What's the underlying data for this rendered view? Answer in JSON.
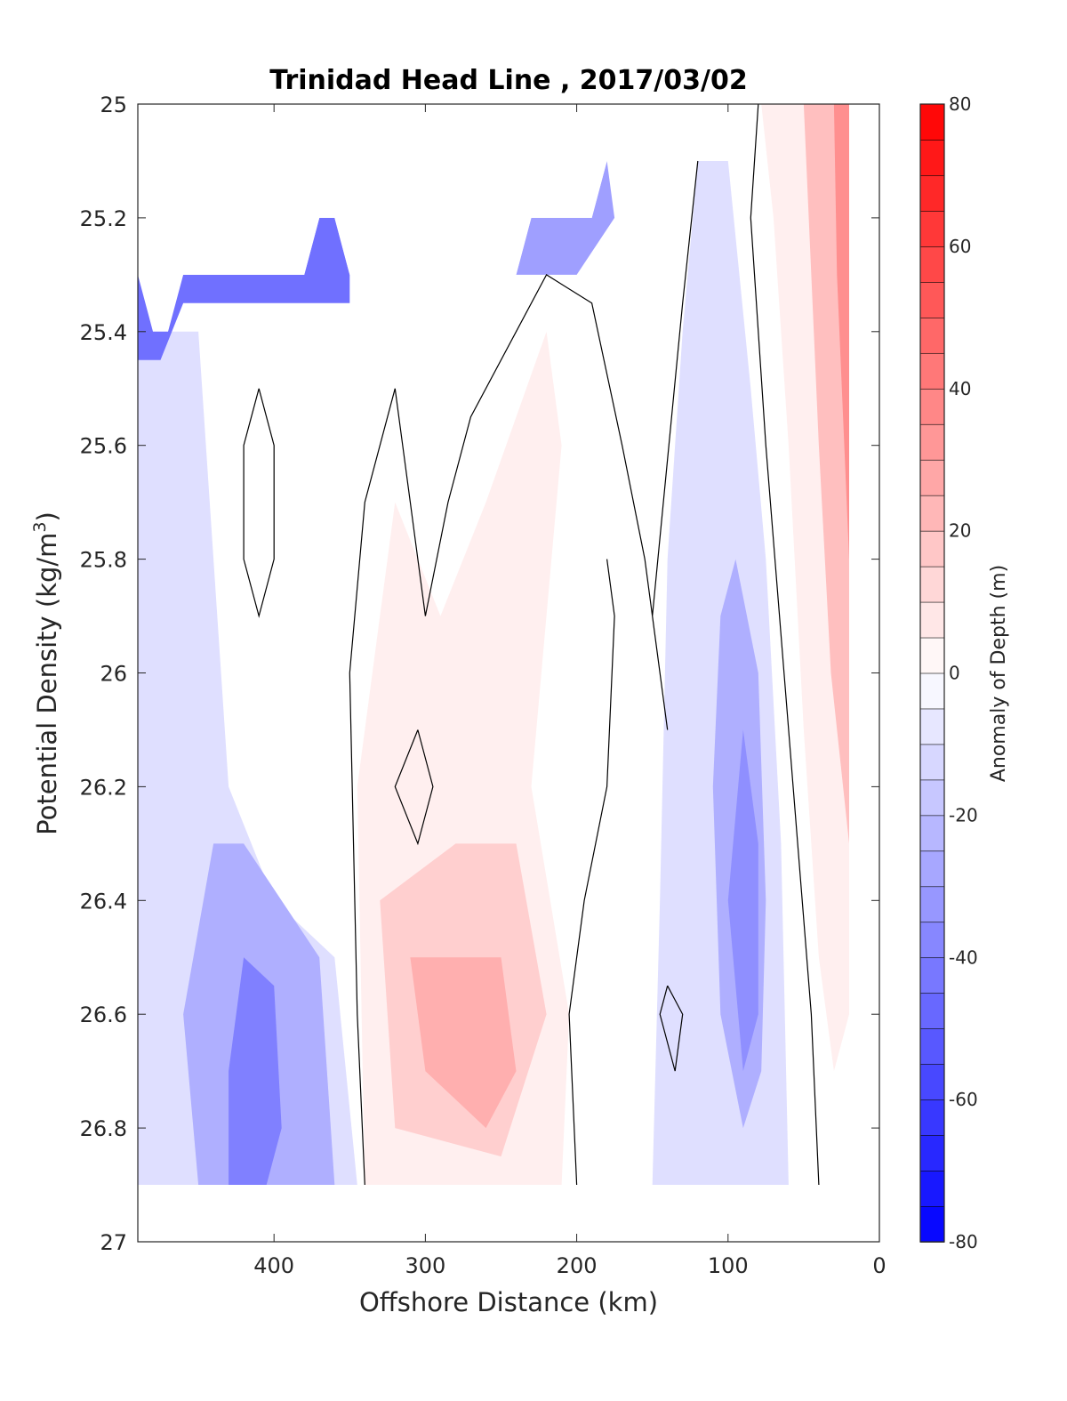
{
  "chart_data": {
    "type": "contourf",
    "title": "Trinidad Head Line , 2017/03/02",
    "xlabel": "Offshore Distance (km)",
    "ylabel_main": "Potential Density (kg/m",
    "ylabel_sup": "3",
    "ylabel_tail": ")",
    "x_reversed": true,
    "xlim": [
      490,
      0
    ],
    "y_reversed": true,
    "ylim": [
      25,
      27
    ],
    "x_ticks": [
      400,
      300,
      200,
      100,
      0
    ],
    "x_tick_labels": [
      "400",
      "300",
      "200",
      "100",
      "0"
    ],
    "y_ticks": [
      25,
      25.2,
      25.4,
      25.6,
      25.8,
      26,
      26.2,
      26.4,
      26.6,
      26.8,
      27
    ],
    "y_tick_labels": [
      "25",
      "25.2",
      "25.4",
      "25.6",
      "25.8",
      "26",
      "26.2",
      "26.4",
      "26.6",
      "26.8",
      "27"
    ],
    "colorbar": {
      "label": "Anomaly of Depth (m)",
      "range": [
        -80,
        80
      ],
      "step": 5,
      "ticks": [
        80,
        60,
        40,
        20,
        0,
        -20,
        -40,
        -60,
        -80
      ],
      "tick_labels": [
        "80",
        "60",
        "40",
        "20",
        "0",
        "-20",
        "-40",
        "-60",
        "-80"
      ],
      "colormap": "blue-white-red",
      "neg_color": "#0000ff",
      "pos_color": "#ff0000"
    },
    "contour_levels_drawn": [
      0
    ],
    "data_top_boundary": [
      [
        490,
        25.3
      ],
      [
        480,
        25.4
      ],
      [
        470,
        25.4
      ],
      [
        460,
        25.3
      ],
      [
        380,
        25.3
      ],
      [
        370,
        25.2
      ],
      [
        360,
        25.2
      ],
      [
        350,
        25.3
      ],
      [
        240,
        25.3
      ],
      [
        230,
        25.2
      ],
      [
        190,
        25.2
      ],
      [
        180,
        25.1
      ],
      [
        120,
        25.1
      ],
      [
        110,
        25.0
      ],
      [
        20,
        25.0
      ]
    ],
    "data_bottom_density": 26.9,
    "data_x_extent": [
      490,
      20
    ],
    "anomaly_regions": [
      {
        "name": "nearshore-positive",
        "anomaly": 5,
        "polygon": [
          [
            78,
            25.0
          ],
          [
            20,
            25.0
          ],
          [
            20,
            26.6
          ],
          [
            30,
            26.7
          ],
          [
            40,
            26.5
          ],
          [
            50,
            26.1
          ],
          [
            60,
            25.6
          ],
          [
            70,
            25.2
          ]
        ]
      },
      {
        "name": "nearshore-positive-mid",
        "anomaly": 20,
        "polygon": [
          [
            50,
            25.0
          ],
          [
            20,
            25.0
          ],
          [
            20,
            26.3
          ],
          [
            32,
            26.0
          ],
          [
            40,
            25.6
          ]
        ]
      },
      {
        "name": "nearshore-positive-core",
        "anomaly": 35,
        "polygon": [
          [
            30,
            25.0
          ],
          [
            20,
            25.0
          ],
          [
            20,
            25.8
          ],
          [
            28,
            25.3
          ]
        ]
      },
      {
        "name": "coastal-negative-band",
        "anomaly": -10,
        "polygon": [
          [
            120,
            25.1
          ],
          [
            100,
            25.1
          ],
          [
            85,
            25.5
          ],
          [
            75,
            25.8
          ],
          [
            65,
            26.3
          ],
          [
            60,
            26.9
          ],
          [
            150,
            26.9
          ],
          [
            145,
            26.4
          ],
          [
            140,
            25.8
          ],
          [
            130,
            25.4
          ]
        ]
      },
      {
        "name": "coastal-negative-core",
        "anomaly": -25,
        "polygon": [
          [
            95,
            25.8
          ],
          [
            80,
            26.0
          ],
          [
            75,
            26.4
          ],
          [
            78,
            26.7
          ],
          [
            90,
            26.8
          ],
          [
            105,
            26.6
          ],
          [
            110,
            26.2
          ],
          [
            105,
            25.9
          ]
        ]
      },
      {
        "name": "coastal-negative-inner",
        "anomaly": -35,
        "polygon": [
          [
            90,
            26.1
          ],
          [
            80,
            26.3
          ],
          [
            80,
            26.6
          ],
          [
            90,
            26.7
          ],
          [
            100,
            26.4
          ]
        ]
      },
      {
        "name": "central-positive",
        "anomaly": 5,
        "polygon": [
          [
            320,
            25.7
          ],
          [
            345,
            26.2
          ],
          [
            340,
            26.9
          ],
          [
            210,
            26.9
          ],
          [
            205,
            26.6
          ],
          [
            230,
            26.2
          ],
          [
            210,
            25.6
          ],
          [
            220,
            25.4
          ],
          [
            260,
            25.7
          ],
          [
            290,
            25.9
          ]
        ]
      },
      {
        "name": "central-positive-mid",
        "anomaly": 15,
        "polygon": [
          [
            330,
            26.4
          ],
          [
            320,
            26.8
          ],
          [
            250,
            26.85
          ],
          [
            220,
            26.6
          ],
          [
            240,
            26.3
          ],
          [
            280,
            26.3
          ]
        ]
      },
      {
        "name": "central-positive-core",
        "anomaly": 25,
        "polygon": [
          [
            310,
            26.5
          ],
          [
            300,
            26.7
          ],
          [
            260,
            26.8
          ],
          [
            240,
            26.7
          ],
          [
            250,
            26.5
          ],
          [
            280,
            26.5
          ]
        ]
      },
      {
        "name": "offshore-negative-band",
        "anomaly": -10,
        "polygon": [
          [
            490,
            25.4
          ],
          [
            450,
            25.4
          ],
          [
            440,
            25.8
          ],
          [
            430,
            26.2
          ],
          [
            400,
            26.4
          ],
          [
            360,
            26.5
          ],
          [
            345,
            26.9
          ],
          [
            490,
            26.9
          ]
        ]
      },
      {
        "name": "offshore-negative-mid",
        "anomaly": -25,
        "polygon": [
          [
            440,
            26.3
          ],
          [
            420,
            26.3
          ],
          [
            370,
            26.5
          ],
          [
            360,
            26.9
          ],
          [
            450,
            26.9
          ],
          [
            460,
            26.6
          ]
        ]
      },
      {
        "name": "offshore-negative-core",
        "anomaly": -40,
        "polygon": [
          [
            420,
            26.5
          ],
          [
            400,
            26.55
          ],
          [
            395,
            26.8
          ],
          [
            405,
            26.9
          ],
          [
            430,
            26.9
          ],
          [
            430,
            26.7
          ]
        ]
      },
      {
        "name": "surface-negative-strip",
        "anomaly": -45,
        "polygon": [
          [
            490,
            25.3
          ],
          [
            460,
            25.3
          ],
          [
            380,
            25.3
          ],
          [
            370,
            25.2
          ],
          [
            360,
            25.2
          ],
          [
            350,
            25.3
          ],
          [
            350,
            25.35
          ],
          [
            380,
            25.35
          ],
          [
            460,
            25.35
          ],
          [
            475,
            25.45
          ],
          [
            490,
            25.45
          ]
        ]
      },
      {
        "name": "surface-negative-patch",
        "anomaly": -30,
        "polygon": [
          [
            230,
            25.2
          ],
          [
            190,
            25.2
          ],
          [
            180,
            25.1
          ],
          [
            175,
            25.2
          ],
          [
            200,
            25.3
          ],
          [
            240,
            25.3
          ]
        ]
      }
    ],
    "zero_contours": [
      {
        "name": "western-zero-contour",
        "points": [
          [
            320,
            25.5
          ],
          [
            340,
            25.7
          ],
          [
            350,
            26.0
          ],
          [
            345,
            26.6
          ],
          [
            340,
            26.9
          ]
        ]
      },
      {
        "name": "central-zero-contour",
        "points": [
          [
            320,
            25.5
          ],
          [
            310,
            25.7
          ],
          [
            300,
            25.9
          ],
          [
            285,
            25.7
          ],
          [
            270,
            25.55
          ],
          [
            240,
            25.4
          ],
          [
            220,
            25.3
          ],
          [
            190,
            25.35
          ],
          [
            170,
            25.6
          ],
          [
            155,
            25.8
          ],
          [
            140,
            26.1
          ],
          [
            150,
            25.9
          ],
          [
            130,
            25.35
          ],
          [
            120,
            25.1
          ]
        ]
      },
      {
        "name": "nearshore-zero-contour",
        "points": [
          [
            80,
            25.0
          ],
          [
            85,
            25.2
          ],
          [
            75,
            25.6
          ],
          [
            60,
            26.1
          ],
          [
            45,
            26.6
          ],
          [
            40,
            26.9
          ]
        ]
      },
      {
        "name": "central-lower-zero-contour",
        "points": [
          [
            200,
            26.9
          ],
          [
            205,
            26.6
          ],
          [
            195,
            26.4
          ],
          [
            180,
            26.2
          ],
          [
            175,
            25.9
          ],
          [
            180,
            25.8
          ]
        ]
      },
      {
        "name": "offshore-closed-zero-contour",
        "points": [
          [
            410,
            25.5
          ],
          [
            420,
            25.6
          ],
          [
            420,
            25.8
          ],
          [
            410,
            25.9
          ],
          [
            400,
            25.8
          ],
          [
            400,
            25.6
          ],
          [
            410,
            25.5
          ]
        ]
      },
      {
        "name": "central-closed-zero-contour",
        "points": [
          [
            305,
            26.1
          ],
          [
            320,
            26.2
          ],
          [
            305,
            26.3
          ],
          [
            295,
            26.2
          ],
          [
            305,
            26.1
          ]
        ]
      },
      {
        "name": "coastal-closed-zero-contour",
        "points": [
          [
            140,
            26.55
          ],
          [
            130,
            26.6
          ],
          [
            135,
            26.7
          ],
          [
            145,
            26.6
          ],
          [
            140,
            26.55
          ]
        ]
      }
    ]
  }
}
